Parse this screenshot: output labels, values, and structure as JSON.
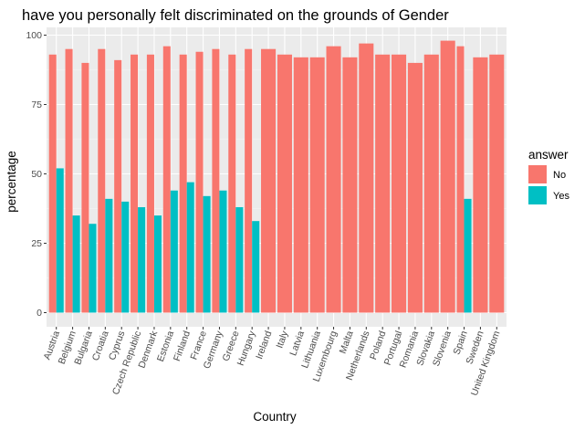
{
  "chart_data": {
    "type": "bar",
    "title": "have you personally felt discriminated on the grounds of Gender",
    "xlabel": "Country",
    "ylabel": "percentage",
    "ylim": [
      0,
      100
    ],
    "yticks": [
      0,
      25,
      50,
      75,
      100
    ],
    "grid": true,
    "legend": {
      "title": "answer",
      "position": "right"
    },
    "categories": [
      "Austria",
      "Belgium",
      "Bulgaria",
      "Croatia",
      "Cyprus",
      "Czech Republic",
      "Denmark",
      "Estonia",
      "Finland",
      "France",
      "Germany",
      "Greece",
      "Hungary",
      "Ireland",
      "Italy",
      "Latvia",
      "Lithuania",
      "Luxembourg",
      "Malta",
      "Netherlands",
      "Poland",
      "Portugal",
      "Romania",
      "Slovakia",
      "Slovenia",
      "Spain",
      "Sweden",
      "United Kingdom"
    ],
    "series": [
      {
        "name": "No",
        "color": "#F8766D",
        "values": [
          93,
          95,
          90,
          95,
          91,
          93,
          93,
          96,
          93,
          94,
          95,
          93,
          95,
          95,
          93,
          92,
          92,
          96,
          92,
          97,
          93,
          93,
          90,
          93,
          98,
          96,
          92,
          93
        ]
      },
      {
        "name": "Yes",
        "color": "#00BFC4",
        "values": [
          52,
          35,
          32,
          41,
          40,
          38,
          35,
          44,
          47,
          42,
          44,
          38,
          33,
          null,
          null,
          null,
          null,
          null,
          null,
          null,
          null,
          null,
          null,
          null,
          null,
          41,
          null,
          null
        ]
      }
    ]
  }
}
